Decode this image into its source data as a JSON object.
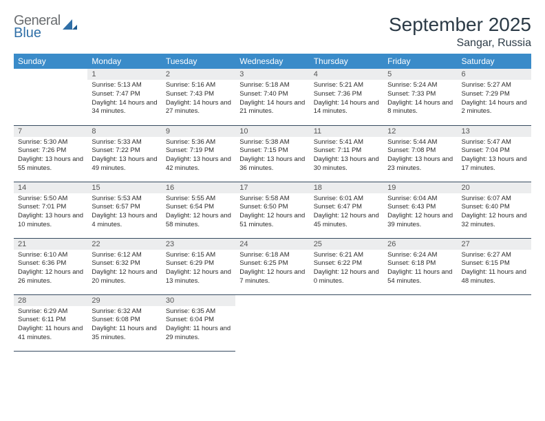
{
  "brand": {
    "name_top": "General",
    "name_bottom": "Blue"
  },
  "title": "September 2025",
  "location": "Sangar, Russia",
  "colors": {
    "header_bg": "#3a8bc9",
    "header_text": "#ffffff",
    "daynum_bg": "#ecedee",
    "row_divider": "#34495e",
    "text": "#2b2b2b",
    "brand_gray": "#6a6d70",
    "brand_blue": "#2f6fa7",
    "page_bg": "#ffffff"
  },
  "weekdays": [
    "Sunday",
    "Monday",
    "Tuesday",
    "Wednesday",
    "Thursday",
    "Friday",
    "Saturday"
  ],
  "weeks": [
    [
      null,
      {
        "n": "1",
        "sr": "5:13 AM",
        "ss": "7:47 PM",
        "dl": "14 hours and 34 minutes."
      },
      {
        "n": "2",
        "sr": "5:16 AM",
        "ss": "7:43 PM",
        "dl": "14 hours and 27 minutes."
      },
      {
        "n": "3",
        "sr": "5:18 AM",
        "ss": "7:40 PM",
        "dl": "14 hours and 21 minutes."
      },
      {
        "n": "4",
        "sr": "5:21 AM",
        "ss": "7:36 PM",
        "dl": "14 hours and 14 minutes."
      },
      {
        "n": "5",
        "sr": "5:24 AM",
        "ss": "7:33 PM",
        "dl": "14 hours and 8 minutes."
      },
      {
        "n": "6",
        "sr": "5:27 AM",
        "ss": "7:29 PM",
        "dl": "14 hours and 2 minutes."
      }
    ],
    [
      {
        "n": "7",
        "sr": "5:30 AM",
        "ss": "7:26 PM",
        "dl": "13 hours and 55 minutes."
      },
      {
        "n": "8",
        "sr": "5:33 AM",
        "ss": "7:22 PM",
        "dl": "13 hours and 49 minutes."
      },
      {
        "n": "9",
        "sr": "5:36 AM",
        "ss": "7:19 PM",
        "dl": "13 hours and 42 minutes."
      },
      {
        "n": "10",
        "sr": "5:38 AM",
        "ss": "7:15 PM",
        "dl": "13 hours and 36 minutes."
      },
      {
        "n": "11",
        "sr": "5:41 AM",
        "ss": "7:11 PM",
        "dl": "13 hours and 30 minutes."
      },
      {
        "n": "12",
        "sr": "5:44 AM",
        "ss": "7:08 PM",
        "dl": "13 hours and 23 minutes."
      },
      {
        "n": "13",
        "sr": "5:47 AM",
        "ss": "7:04 PM",
        "dl": "13 hours and 17 minutes."
      }
    ],
    [
      {
        "n": "14",
        "sr": "5:50 AM",
        "ss": "7:01 PM",
        "dl": "13 hours and 10 minutes."
      },
      {
        "n": "15",
        "sr": "5:53 AM",
        "ss": "6:57 PM",
        "dl": "13 hours and 4 minutes."
      },
      {
        "n": "16",
        "sr": "5:55 AM",
        "ss": "6:54 PM",
        "dl": "12 hours and 58 minutes."
      },
      {
        "n": "17",
        "sr": "5:58 AM",
        "ss": "6:50 PM",
        "dl": "12 hours and 51 minutes."
      },
      {
        "n": "18",
        "sr": "6:01 AM",
        "ss": "6:47 PM",
        "dl": "12 hours and 45 minutes."
      },
      {
        "n": "19",
        "sr": "6:04 AM",
        "ss": "6:43 PM",
        "dl": "12 hours and 39 minutes."
      },
      {
        "n": "20",
        "sr": "6:07 AM",
        "ss": "6:40 PM",
        "dl": "12 hours and 32 minutes."
      }
    ],
    [
      {
        "n": "21",
        "sr": "6:10 AM",
        "ss": "6:36 PM",
        "dl": "12 hours and 26 minutes."
      },
      {
        "n": "22",
        "sr": "6:12 AM",
        "ss": "6:32 PM",
        "dl": "12 hours and 20 minutes."
      },
      {
        "n": "23",
        "sr": "6:15 AM",
        "ss": "6:29 PM",
        "dl": "12 hours and 13 minutes."
      },
      {
        "n": "24",
        "sr": "6:18 AM",
        "ss": "6:25 PM",
        "dl": "12 hours and 7 minutes."
      },
      {
        "n": "25",
        "sr": "6:21 AM",
        "ss": "6:22 PM",
        "dl": "12 hours and 0 minutes."
      },
      {
        "n": "26",
        "sr": "6:24 AM",
        "ss": "6:18 PM",
        "dl": "11 hours and 54 minutes."
      },
      {
        "n": "27",
        "sr": "6:27 AM",
        "ss": "6:15 PM",
        "dl": "11 hours and 48 minutes."
      }
    ],
    [
      {
        "n": "28",
        "sr": "6:29 AM",
        "ss": "6:11 PM",
        "dl": "11 hours and 41 minutes."
      },
      {
        "n": "29",
        "sr": "6:32 AM",
        "ss": "6:08 PM",
        "dl": "11 hours and 35 minutes."
      },
      {
        "n": "30",
        "sr": "6:35 AM",
        "ss": "6:04 PM",
        "dl": "11 hours and 29 minutes."
      },
      null,
      null,
      null,
      null
    ]
  ],
  "labels": {
    "sunrise": "Sunrise:",
    "sunset": "Sunset:",
    "daylight": "Daylight:"
  }
}
